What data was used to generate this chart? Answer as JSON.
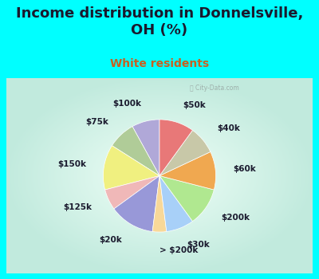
{
  "title": "Income distribution in Donnelsville,\nOH (%)",
  "subtitle": "White residents",
  "title_color": "#1a1a2e",
  "subtitle_color": "#c86020",
  "background_color": "#00ffff",
  "labels": [
    "$100k",
    "$75k",
    "$150k",
    "$125k",
    "$20k",
    "> $200k",
    "$30k",
    "$200k",
    "$60k",
    "$40k",
    "$50k"
  ],
  "values": [
    8,
    8,
    13,
    6,
    13,
    4,
    8,
    11,
    11,
    8,
    10
  ],
  "colors": [
    "#b0a8d8",
    "#b0cc98",
    "#f0f080",
    "#f0b8b8",
    "#9898d8",
    "#f8d898",
    "#a8d0f8",
    "#b0e890",
    "#f0a850",
    "#c8c8a8",
    "#e87878"
  ],
  "startangle": 90,
  "label_fontsize": 7.5,
  "title_fontsize": 13,
  "subtitle_fontsize": 10
}
